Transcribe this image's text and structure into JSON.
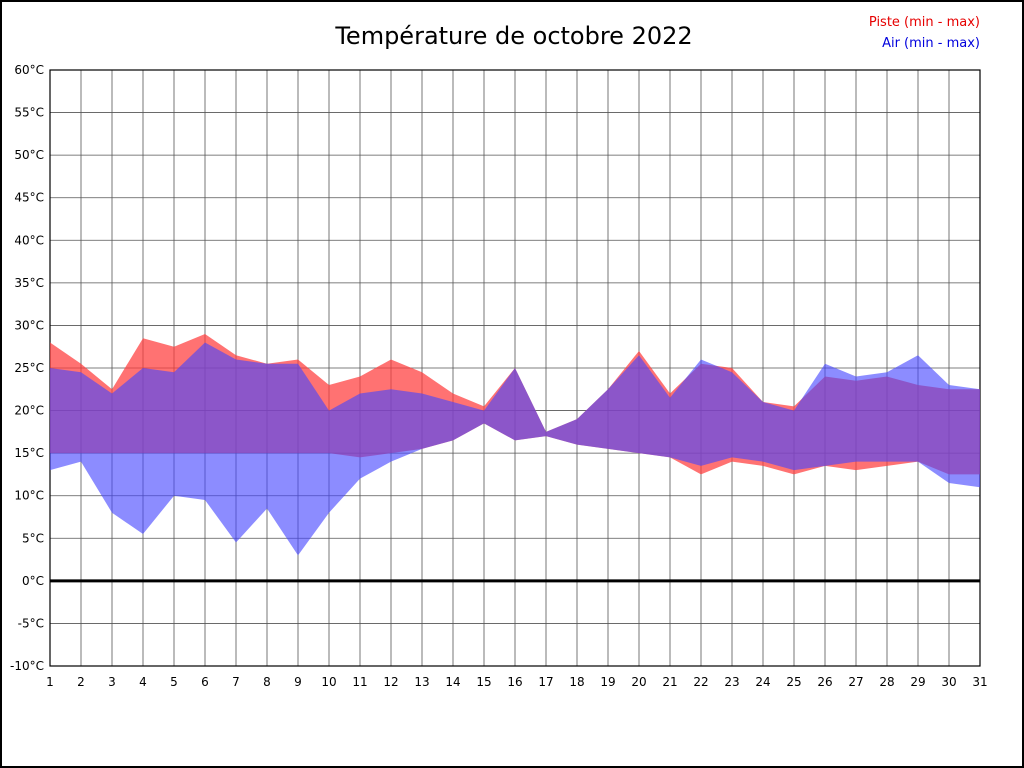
{
  "page": {
    "background_color": "#ffffff",
    "border_color": "#000000"
  },
  "chart_data": {
    "type": "area",
    "subtype": "min-max-band",
    "title": "Température de octobre 2022",
    "xlabel": "",
    "ylabel": "",
    "y_unit": "°C",
    "ylim": [
      -10,
      60
    ],
    "ytick_step": 5,
    "zero_line": 0,
    "grid": true,
    "legend_position": "top-right",
    "x": [
      1,
      2,
      3,
      4,
      5,
      6,
      7,
      8,
      9,
      10,
      11,
      12,
      13,
      14,
      15,
      16,
      17,
      18,
      19,
      20,
      21,
      22,
      23,
      24,
      25,
      26,
      27,
      28,
      29,
      30,
      31
    ],
    "series": [
      {
        "name": "Piste (min - max)",
        "label_color": "#e60000",
        "fill_color": "#ff3c3c",
        "fill_opacity": 0.72,
        "max": [
          28,
          25.5,
          22.5,
          28.5,
          27.5,
          29,
          26.5,
          25.5,
          26,
          23,
          24,
          26,
          24.5,
          22,
          20.5,
          25,
          17.5,
          19,
          22.5,
          27,
          22,
          25.5,
          25,
          21,
          20.5,
          24,
          23.5,
          24,
          23,
          22.5,
          22.5
        ],
        "min": [
          15,
          15,
          15,
          15,
          15,
          15,
          15,
          15,
          15,
          15,
          14.5,
          15,
          15.5,
          16.5,
          18.5,
          16.5,
          17,
          16,
          15.5,
          15,
          14.5,
          12.5,
          14,
          13.5,
          12.5,
          13.5,
          13,
          13.5,
          14,
          12.5,
          12.5
        ]
      },
      {
        "name": "Air (min - max)",
        "label_color": "#0000dd",
        "fill_color": "#4646ff",
        "fill_opacity": 0.62,
        "max": [
          25,
          24.5,
          22,
          25,
          24.5,
          28,
          26,
          25.5,
          25.5,
          20,
          22,
          22.5,
          22,
          21,
          20,
          25,
          17.5,
          19,
          22.5,
          26.5,
          21.5,
          26,
          24.5,
          21,
          20,
          25.5,
          24,
          24.5,
          26.5,
          23,
          22.5
        ],
        "min": [
          13,
          14,
          8,
          5.5,
          10,
          9.5,
          4.5,
          8.5,
          3,
          8,
          12,
          14,
          15.5,
          16.5,
          18.5,
          16.5,
          17,
          16,
          15.5,
          15,
          14.5,
          13.5,
          14.5,
          14,
          13,
          13.5,
          14,
          14,
          14,
          11.5,
          11
        ]
      }
    ]
  }
}
